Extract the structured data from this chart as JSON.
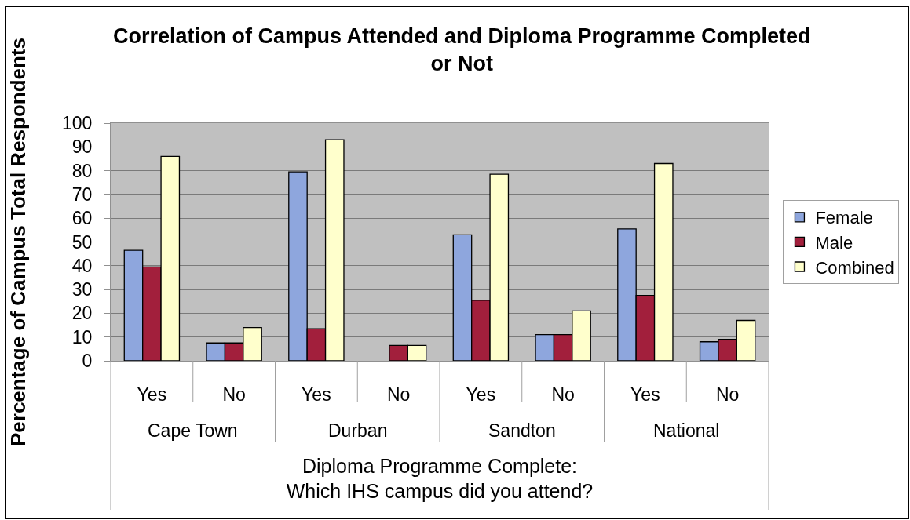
{
  "chart_data": {
    "type": "bar",
    "title": "Correlation of Campus Attended and Diploma Programme Completed\nor Not",
    "xlabel": "Diploma Programme Complete:\nWhich IHS campus did you attend?",
    "ylabel": "Percentage of Campus Total Respondents",
    "categories": [
      "Yes",
      "No",
      "Yes",
      "No",
      "Yes",
      "No",
      "Yes",
      "No"
    ],
    "annotations": [
      "Cape Town",
      "Durban",
      "Sandton",
      "National"
    ],
    "series": [
      {
        "name": "Female",
        "color": "#8ea6dd",
        "values": [
          46.5,
          7.5,
          79.5,
          null,
          53,
          11,
          55.5,
          8
        ]
      },
      {
        "name": "Male",
        "color": "#a21f3c",
        "values": [
          39.5,
          7.5,
          13.5,
          6.5,
          25.5,
          11,
          27.5,
          9
        ]
      },
      {
        "name": "Combined",
        "color": "#ffffcc",
        "values": [
          86,
          14,
          93,
          6.5,
          78.5,
          21,
          83,
          17
        ]
      }
    ],
    "ylim": [
      0,
      100
    ],
    "yticks": [
      0,
      10,
      20,
      30,
      40,
      50,
      60,
      70,
      80,
      90,
      100
    ],
    "grid": "y",
    "legend": "right"
  }
}
